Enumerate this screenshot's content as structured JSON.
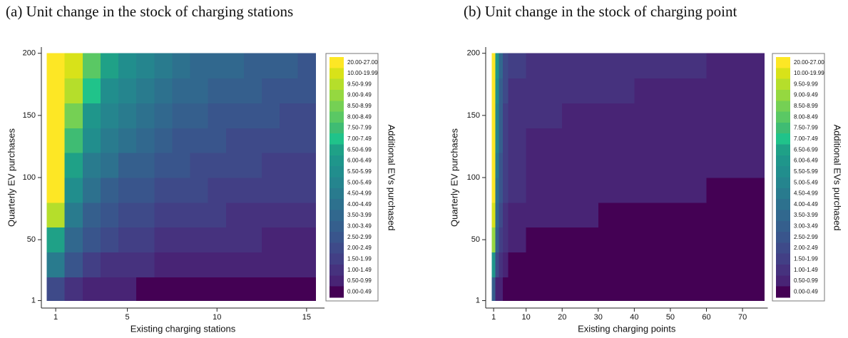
{
  "chart_data": [
    {
      "type": "heatmap",
      "title": "(a) Unit change in the stock of charging stations",
      "x_label": "Existing charging stations",
      "y_label": "Quarterly EV purchases",
      "legend_title": "Additional EVs purchased",
      "xlim": [
        0.2,
        16
      ],
      "ylim": [
        -5,
        205
      ],
      "xticks": [
        1,
        5,
        10,
        15
      ],
      "yticks": [
        1,
        50,
        100,
        150,
        200
      ],
      "x_edges": [
        0.5,
        1.5,
        2.5,
        3.5,
        4.5,
        5.5,
        6.5,
        7.5,
        8.5,
        9.5,
        10.5,
        11.5,
        12.5,
        13.5,
        14.5,
        15.5
      ],
      "y_edges": [
        1,
        20,
        40,
        60,
        80,
        100,
        120,
        140,
        160,
        180,
        200
      ],
      "values": [
        [
          2.2,
          1.2,
          0.8,
          0.6,
          0.5,
          0.45,
          0.42,
          0.4,
          0.38,
          0.36,
          0.34,
          0.32,
          0.3,
          0.29,
          0.28
        ],
        [
          4.5,
          2.7,
          1.7,
          1.3,
          1.1,
          1.0,
          0.9,
          0.85,
          0.8,
          0.75,
          0.7,
          0.68,
          0.65,
          0.62,
          0.6
        ],
        [
          6.5,
          3.7,
          2.5,
          2.0,
          1.7,
          1.5,
          1.4,
          1.3,
          1.2,
          1.1,
          1.05,
          1.0,
          0.95,
          0.92,
          0.9
        ],
        [
          9.7,
          4.8,
          3.3,
          2.7,
          2.3,
          2.0,
          1.8,
          1.7,
          1.6,
          1.5,
          1.4,
          1.35,
          1.3,
          1.25,
          1.2
        ],
        [
          22,
          5.8,
          4.0,
          3.3,
          2.9,
          2.5,
          2.3,
          2.1,
          2.0,
          1.9,
          1.8,
          1.7,
          1.6,
          1.55,
          1.5
        ],
        [
          22,
          6.8,
          4.8,
          4.0,
          3.4,
          3.0,
          2.7,
          2.5,
          2.4,
          2.2,
          2.1,
          2.0,
          1.9,
          1.85,
          1.8
        ],
        [
          22,
          7.7,
          5.6,
          4.6,
          4.0,
          3.5,
          3.2,
          2.9,
          2.7,
          2.6,
          2.4,
          2.3,
          2.2,
          2.1,
          2.05
        ],
        [
          23,
          8.6,
          6.4,
          5.3,
          4.5,
          4.0,
          3.6,
          3.3,
          3.1,
          2.9,
          2.8,
          2.6,
          2.5,
          2.4,
          2.3
        ],
        [
          24,
          9.6,
          7.2,
          5.9,
          5.0,
          4.5,
          4.1,
          3.7,
          3.5,
          3.3,
          3.1,
          3.0,
          2.8,
          2.7,
          2.6
        ],
        [
          25,
          11,
          8.0,
          6.5,
          5.6,
          5.0,
          4.5,
          4.2,
          3.9,
          3.7,
          3.5,
          3.3,
          3.1,
          3.0,
          2.9
        ]
      ],
      "legend": [
        {
          "label": "20.00-27.00",
          "color": "#fde725"
        },
        {
          "label": "10.00-19.99",
          "color": "#d8e219"
        },
        {
          "label": "9.50-9.99",
          "color": "#b5de2b"
        },
        {
          "label": "9.00-9.49",
          "color": "#95d840"
        },
        {
          "label": "8.50-8.99",
          "color": "#75d054"
        },
        {
          "label": "8.00-8.49",
          "color": "#5ac864"
        },
        {
          "label": "7.50-7.99",
          "color": "#3fbc73"
        },
        {
          "label": "7.00-7.49",
          "color": "#20c38a"
        },
        {
          "label": "6.50-6.99",
          "color": "#1fa187"
        },
        {
          "label": "6.00-6.49",
          "color": "#1f968b"
        },
        {
          "label": "5.50-5.99",
          "color": "#218e8d"
        },
        {
          "label": "5.00-5.49",
          "color": "#25858e"
        },
        {
          "label": "4.50-4.99",
          "color": "#297b8e"
        },
        {
          "label": "4.00-4.49",
          "color": "#2d718e"
        },
        {
          "label": "3.50-3.99",
          "color": "#31688e"
        },
        {
          "label": "3.00-3.49",
          "color": "#355f8d"
        },
        {
          "label": "2.50-2.99",
          "color": "#39558c"
        },
        {
          "label": "2.00-2.49",
          "color": "#3e4a89"
        },
        {
          "label": "1.50-1.99",
          "color": "#423f85"
        },
        {
          "label": "1.00-1.49",
          "color": "#46327e"
        },
        {
          "label": "0.50-0.99",
          "color": "#482475"
        },
        {
          "label": "0.00-0.49",
          "color": "#440154"
        }
      ]
    },
    {
      "type": "heatmap",
      "title": "(b) Unit change in the stock of charging point",
      "x_label": "Existing charging points",
      "y_label": "Quarterly EV purchases",
      "legend_title": "Additional EVs purchased",
      "xlim": [
        -1.2,
        77
      ],
      "ylim": [
        -5,
        205
      ],
      "xticks": [
        1,
        10,
        20,
        30,
        40,
        50,
        60,
        70
      ],
      "yticks": [
        1,
        50,
        100,
        150,
        200
      ],
      "x_edges": [
        0.5,
        1.5,
        2.5,
        3.5,
        5,
        10,
        20,
        30,
        40,
        50,
        60,
        76
      ],
      "y_edges": [
        1,
        20,
        40,
        60,
        80,
        100,
        120,
        140,
        160,
        180,
        200
      ],
      "values": [
        [
          3,
          0.8,
          0.5,
          0.3,
          0.2,
          0.15,
          0.1,
          0.1,
          0.1,
          0.1,
          0.1
        ],
        [
          6,
          2.0,
          1.2,
          0.7,
          0.4,
          0.3,
          0.25,
          0.2,
          0.2,
          0.2,
          0.2
        ],
        [
          9,
          3.0,
          1.8,
          1.1,
          0.6,
          0.45,
          0.4,
          0.35,
          0.3,
          0.3,
          0.3
        ],
        [
          15,
          3.8,
          2.3,
          1.4,
          0.8,
          0.6,
          0.55,
          0.45,
          0.4,
          0.4,
          0.4
        ],
        [
          22,
          4.3,
          2.6,
          1.6,
          1.0,
          0.75,
          0.65,
          0.6,
          0.55,
          0.5,
          0.45
        ],
        [
          22,
          4.7,
          2.8,
          1.7,
          1.1,
          0.85,
          0.75,
          0.7,
          0.65,
          0.6,
          0.55
        ],
        [
          23,
          5.0,
          3.0,
          1.8,
          1.2,
          0.95,
          0.85,
          0.8,
          0.75,
          0.7,
          0.65
        ],
        [
          24,
          5.3,
          3.2,
          1.9,
          1.3,
          1.05,
          0.95,
          0.9,
          0.85,
          0.8,
          0.75
        ],
        [
          25,
          5.6,
          3.4,
          2.0,
          1.4,
          1.1,
          1.05,
          1.0,
          0.95,
          0.9,
          0.85
        ],
        [
          25,
          6.0,
          3.5,
          2.0,
          1.5,
          1.2,
          1.1,
          1.1,
          1.05,
          1.0,
          0.95
        ]
      ],
      "legend": [
        {
          "label": "20.00-27.00",
          "color": "#fde725"
        },
        {
          "label": "10.00-19.99",
          "color": "#d8e219"
        },
        {
          "label": "9.50-9.99",
          "color": "#b5de2b"
        },
        {
          "label": "9.00-9.49",
          "color": "#95d840"
        },
        {
          "label": "8.50-8.99",
          "color": "#75d054"
        },
        {
          "label": "8.00-8.49",
          "color": "#5ac864"
        },
        {
          "label": "7.50-7.99",
          "color": "#3fbc73"
        },
        {
          "label": "7.00-7.49",
          "color": "#20c38a"
        },
        {
          "label": "6.50-6.99",
          "color": "#1fa187"
        },
        {
          "label": "6.00-6.49",
          "color": "#1f968b"
        },
        {
          "label": "5.50-5.99",
          "color": "#218e8d"
        },
        {
          "label": "5.00-5.49",
          "color": "#25858e"
        },
        {
          "label": "4.50-4.99",
          "color": "#297b8e"
        },
        {
          "label": "4.00-4.49",
          "color": "#2d718e"
        },
        {
          "label": "3.50-3.99",
          "color": "#31688e"
        },
        {
          "label": "3.00-3.49",
          "color": "#355f8d"
        },
        {
          "label": "2.50-2.99",
          "color": "#39558c"
        },
        {
          "label": "2.00-2.49",
          "color": "#3e4a89"
        },
        {
          "label": "1.50-1.99",
          "color": "#423f85"
        },
        {
          "label": "1.00-1.49",
          "color": "#46327e"
        },
        {
          "label": "0.50-0.99",
          "color": "#482475"
        },
        {
          "label": "0.00-0.49",
          "color": "#440154"
        }
      ]
    }
  ]
}
